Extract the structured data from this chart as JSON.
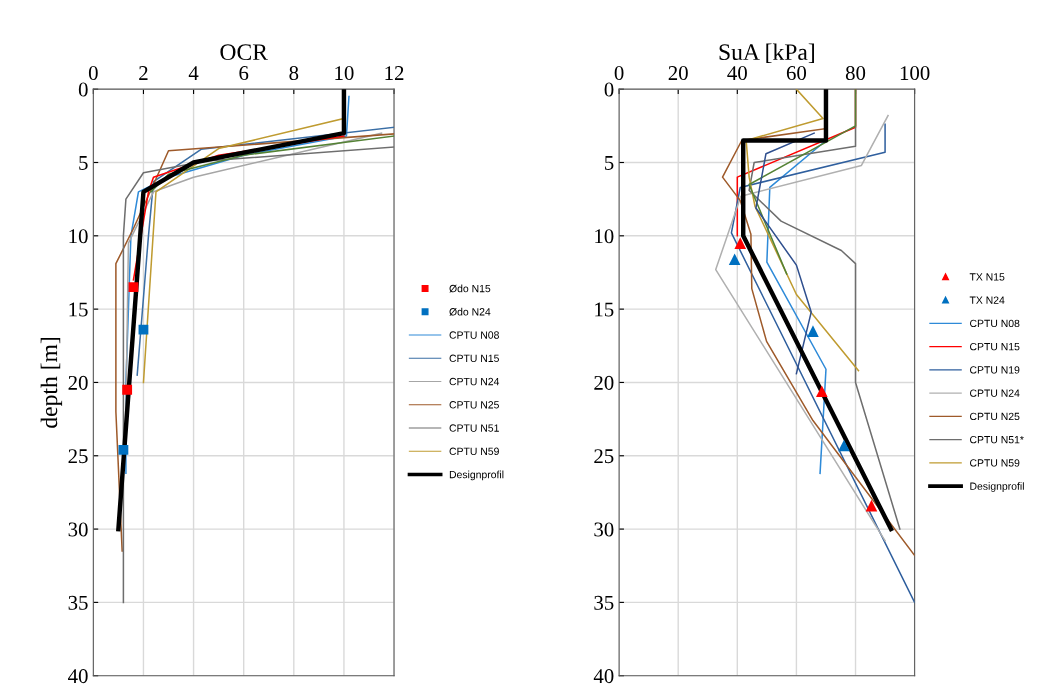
{
  "chart_data": [
    {
      "type": "line",
      "xlabel": "OCR",
      "ylabel": "depth [m]",
      "xlim": [
        0,
        12
      ],
      "xticks": [
        0,
        2,
        4,
        6,
        8,
        10,
        12
      ],
      "ylim": [
        40,
        0
      ],
      "yticks": [
        0,
        5,
        10,
        15,
        20,
        25,
        30,
        35,
        40
      ],
      "grid": true,
      "legend": "right",
      "line_style": "solid",
      "series": [
        {
          "name": "Ødo N15",
          "type": "scatter",
          "marker": "square",
          "color": "#ff0000",
          "x": [
            1.6,
            1.35
          ],
          "values": [
            13.5,
            20.5
          ]
        },
        {
          "name": "Ødo N24",
          "type": "scatter",
          "marker": "square",
          "color": "#0070c0",
          "x": [
            2.0,
            1.2
          ],
          "values": [
            16.4,
            24.6
          ]
        },
        {
          "name": "CPTU N08",
          "color": "#2e8ad8",
          "x": [
            10.2,
            10.1,
            6,
            3,
            1.8,
            1.5,
            1.3,
            1.3
          ],
          "values": [
            0.5,
            3.2,
            4.5,
            6,
            7,
            10,
            20,
            26.2
          ]
        },
        {
          "name": "CPTU N15",
          "color": "#3a6ea5",
          "x": [
            12,
            4.3,
            2.4,
            2.2,
            1.75
          ],
          "values": [
            2.6,
            4.1,
            6.3,
            10,
            19.5
          ]
        },
        {
          "name": "CPTU N24",
          "color": "#a6a6a6",
          "x": [
            11.5,
            4,
            2.4,
            1.4,
            1.3
          ],
          "values": [
            3,
            6,
            7,
            10.5,
            22
          ]
        },
        {
          "name": "CPTU N25",
          "color": "#9e5a2a",
          "x": [
            12,
            3,
            2.4,
            1.6,
            0.9,
            0.9,
            1.15
          ],
          "values": [
            3.05,
            4.2,
            6.5,
            9.5,
            11.9,
            22,
            31.5
          ]
        },
        {
          "name": "CPTU N51",
          "color": "#6e6e6e",
          "x": [
            12,
            4.5,
            2,
            1.3,
            1.2,
            1.2,
            1.2
          ],
          "values": [
            3.95,
            4.9,
            5.7,
            7.5,
            10,
            20,
            35
          ]
        },
        {
          "name": "CPTU N59",
          "color": "#bf9b30",
          "x": [
            10,
            5,
            2.5,
            2.0
          ],
          "values": [
            2.0,
            4.05,
            7,
            20
          ]
        },
        {
          "color": "#ff0000",
          "x": [
            10,
            5,
            2.4,
            2.2,
            1.6
          ],
          "values": [
            3.2,
            4.5,
            6,
            7,
            13
          ]
        },
        {
          "color": "#548235",
          "x": [
            12,
            6,
            3,
            2.3
          ],
          "values": [
            3.2,
            4.5,
            5.8,
            7
          ]
        },
        {
          "name": "Designprofil",
          "color": "#000000",
          "x": [
            10,
            10,
            4,
            2,
            1
          ],
          "values": [
            0,
            3,
            5,
            7,
            30
          ]
        }
      ]
    },
    {
      "type": "line",
      "xlabel": "SuA [kPa]",
      "xlim": [
        0,
        100
      ],
      "xticks": [
        0,
        20,
        40,
        60,
        80,
        100
      ],
      "ylim": [
        40,
        0
      ],
      "yticks": [
        0,
        5,
        10,
        15,
        20,
        25,
        30,
        35,
        40
      ],
      "grid": true,
      "legend": "right",
      "line_style": "solid",
      "series": [
        {
          "name": "TX N15",
          "type": "scatter",
          "marker": "triangle",
          "color": "#ff0000",
          "x": [
            41,
            68.6,
            85.4
          ],
          "values": [
            10.5,
            20.6,
            28.4
          ]
        },
        {
          "name": "TX N24",
          "type": "scatter",
          "marker": "triangle",
          "color": "#0070c0",
          "x": [
            39.1,
            65.6,
            76.1
          ],
          "values": [
            11.6,
            16.5,
            24.3
          ]
        },
        {
          "name": "CPTU N08",
          "color": "#2e8ad8",
          "x": [
            70,
            51,
            50,
            70,
            68
          ],
          "values": [
            3.5,
            6.7,
            11.8,
            19.1,
            26.2
          ]
        },
        {
          "name": "CPTU N15",
          "color": "#ff0000",
          "x": [
            80,
            80,
            40,
            40
          ],
          "values": [
            0,
            2.6,
            6,
            10
          ]
        },
        {
          "name": "CPTU N19",
          "color": "#2f5f9e",
          "x": [
            90,
            90,
            41,
            38,
            100
          ],
          "values": [
            2.4,
            4.3,
            6.7,
            9.8,
            35
          ]
        },
        {
          "name": "CPTU N24",
          "color": "#b0b0b0",
          "x": [
            91,
            82,
            41.2,
            32.7,
            90
          ],
          "values": [
            1.8,
            5.2,
            7.3,
            12.3,
            30.8
          ]
        },
        {
          "name": "CPTU N25",
          "color": "#9e5a2a",
          "x": [
            69.5,
            41.5,
            35,
            41,
            44.6,
            44.9,
            49.9,
            65.6,
            100
          ],
          "values": [
            2.7,
            3.5,
            6,
            7.6,
            9.9,
            13.6,
            17.2,
            22.6,
            31.8
          ]
        },
        {
          "name": "CPTU N51*",
          "color": "#6e6e6e",
          "x": [
            80,
            80,
            45.7,
            44,
            54.8,
            75.2,
            80,
            80,
            95
          ],
          "values": [
            0,
            3.9,
            5,
            6.9,
            9,
            11,
            11.9,
            20,
            30
          ]
        },
        {
          "name": "CPTU N59",
          "color": "#bf9b30",
          "x": [
            60,
            69,
            43,
            44,
            46,
            60,
            81
          ],
          "values": [
            0,
            2,
            3.5,
            6,
            8,
            14,
            19.2
          ]
        },
        {
          "color": "#548235",
          "x": [
            80,
            80,
            44,
            56.7
          ],
          "values": [
            0,
            2.5,
            6.5,
            12.6
          ]
        },
        {
          "color": "#2f4f8e",
          "x": [
            66,
            49.7,
            46.3,
            60,
            65,
            60
          ],
          "values": [
            3.0,
            4.4,
            8.1,
            12,
            15.2,
            19.4
          ]
        },
        {
          "name": "Designprofil",
          "color": "#000000",
          "x": [
            70,
            70,
            42,
            42,
            92
          ],
          "values": [
            0,
            3.5,
            3.5,
            10,
            30
          ]
        }
      ]
    }
  ]
}
